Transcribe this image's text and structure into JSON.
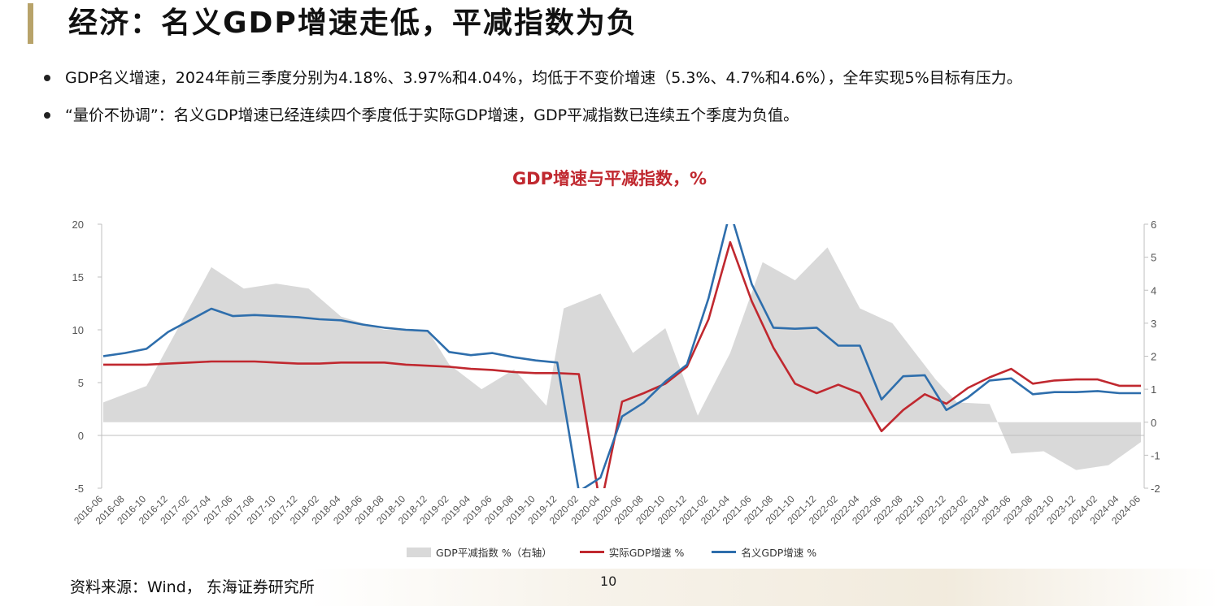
{
  "slide": {
    "title": "经济：名义GDP增速走低，平减指数为负",
    "bullets": [
      "GDP名义增速，2024年前三季度分别为4.18%、3.97%和4.04%，均低于不变价增速（5.3%、4.7%和4.6%），全年实现5%目标有压力。",
      "“量价不协调”：名义GDP增速已经连续四个季度低于实际GDP增速，GDP平减指数已连续五个季度为负值。"
    ],
    "source": "资料来源：Wind， 东海证券研究所",
    "page_number": "10"
  },
  "chart_data": {
    "type": "line",
    "title": "GDP增速与平减指数，%",
    "x": [
      "2016-06",
      "2016-08",
      "2016-10",
      "2016-12",
      "2017-02",
      "2017-04",
      "2017-06",
      "2017-08",
      "2017-10",
      "2017-12",
      "2018-02",
      "2018-04",
      "2018-06",
      "2018-08",
      "2018-10",
      "2018-12",
      "2019-02",
      "2019-04",
      "2019-06",
      "2019-08",
      "2019-10",
      "2019-12",
      "2020-02",
      "2020-04",
      "2020-06",
      "2020-08",
      "2020-10",
      "2020-12",
      "2021-02",
      "2021-04",
      "2021-06",
      "2021-08",
      "2021-10",
      "2021-12",
      "2022-02",
      "2022-04",
      "2022-06",
      "2022-08",
      "2022-10",
      "2022-12",
      "2023-02",
      "2023-04",
      "2023-06",
      "2023-08",
      "2023-10",
      "2023-12",
      "2024-02",
      "2024-04",
      "2024-06"
    ],
    "y_left": {
      "min": -5,
      "max": 20,
      "ticks": [
        -5,
        0,
        5,
        10,
        15,
        20
      ]
    },
    "y_right": {
      "min": -2,
      "max": 6,
      "ticks": [
        -2,
        -1,
        0,
        1,
        2,
        3,
        4,
        5,
        6
      ]
    },
    "series": [
      {
        "name": "GDP平减指数 %（右轴）",
        "kind": "area",
        "axis": "right",
        "color": "#d9d9d9",
        "points": [
          [
            0,
            0.6
          ],
          [
            2,
            1.1
          ],
          [
            5,
            4.7
          ],
          [
            6.5,
            4.05
          ],
          [
            8,
            4.2
          ],
          [
            9.5,
            4.05
          ],
          [
            11,
            3.2
          ],
          [
            13,
            2.8
          ],
          [
            15,
            2.8
          ],
          [
            16,
            1.75
          ],
          [
            17.5,
            1.0
          ],
          [
            19,
            1.6
          ],
          [
            20.5,
            0.5
          ],
          [
            21.3,
            3.45
          ],
          [
            23,
            3.9
          ],
          [
            24.5,
            2.1
          ],
          [
            26,
            2.85
          ],
          [
            27.5,
            0.2
          ],
          [
            29,
            2.1
          ],
          [
            30.5,
            4.85
          ],
          [
            32,
            4.3
          ],
          [
            33.5,
            5.3
          ],
          [
            35,
            3.45
          ],
          [
            36.5,
            3.0
          ],
          [
            38.5,
            1.3
          ],
          [
            39.5,
            0.6
          ],
          [
            41,
            0.55
          ],
          [
            42,
            -0.95
          ],
          [
            43.5,
            -0.88
          ],
          [
            45,
            -1.45
          ],
          [
            46.5,
            -1.3
          ],
          [
            48,
            -0.6
          ]
        ]
      },
      {
        "name": "实际GDP增速 %",
        "kind": "line",
        "axis": "left",
        "color": "#c0282f",
        "points": [
          [
            0,
            6.7
          ],
          [
            1,
            6.7
          ],
          [
            2,
            6.7
          ],
          [
            3,
            6.8
          ],
          [
            4,
            6.9
          ],
          [
            5,
            7.0
          ],
          [
            6,
            7.0
          ],
          [
            7,
            7.0
          ],
          [
            8,
            6.9
          ],
          [
            9,
            6.8
          ],
          [
            10,
            6.8
          ],
          [
            11,
            6.9
          ],
          [
            12,
            6.9
          ],
          [
            13,
            6.9
          ],
          [
            14,
            6.7
          ],
          [
            15,
            6.6
          ],
          [
            16,
            6.5
          ],
          [
            17,
            6.3
          ],
          [
            18,
            6.2
          ],
          [
            19,
            6.0
          ],
          [
            20,
            5.9
          ],
          [
            21,
            5.9
          ],
          [
            22,
            5.8
          ],
          [
            23,
            -6.8
          ],
          [
            24,
            3.2
          ],
          [
            25,
            4.0
          ],
          [
            26,
            4.9
          ],
          [
            27,
            6.5
          ],
          [
            28,
            11.0
          ],
          [
            29,
            18.3
          ],
          [
            30,
            12.7
          ],
          [
            31,
            8.3
          ],
          [
            32,
            4.9
          ],
          [
            33,
            4.0
          ],
          [
            34,
            4.8
          ],
          [
            35,
            4.0
          ],
          [
            36,
            0.4
          ],
          [
            37,
            2.4
          ],
          [
            38,
            3.9
          ],
          [
            39,
            3.0
          ],
          [
            40,
            4.5
          ],
          [
            41,
            5.5
          ],
          [
            42,
            6.3
          ],
          [
            43,
            4.9
          ],
          [
            44,
            5.2
          ],
          [
            45,
            5.3
          ],
          [
            46,
            5.3
          ],
          [
            47,
            4.7
          ],
          [
            48,
            4.7
          ]
        ]
      },
      {
        "name": "名义GDP增速 %",
        "kind": "line",
        "axis": "left",
        "color": "#2e6eac",
        "points": [
          [
            0,
            7.5
          ],
          [
            1,
            7.8
          ],
          [
            2,
            8.2
          ],
          [
            3,
            9.8
          ],
          [
            4,
            10.9
          ],
          [
            5,
            12.0
          ],
          [
            6,
            11.3
          ],
          [
            7,
            11.4
          ],
          [
            8,
            11.3
          ],
          [
            9,
            11.2
          ],
          [
            10,
            11.0
          ],
          [
            11,
            10.9
          ],
          [
            12,
            10.5
          ],
          [
            13,
            10.2
          ],
          [
            14,
            10.0
          ],
          [
            15,
            9.9
          ],
          [
            16,
            7.9
          ],
          [
            17,
            7.6
          ],
          [
            18,
            7.8
          ],
          [
            19,
            7.4
          ],
          [
            20,
            7.1
          ],
          [
            21,
            6.9
          ],
          [
            22,
            -5.3
          ],
          [
            23,
            -4.0
          ],
          [
            24,
            1.8
          ],
          [
            25,
            3.1
          ],
          [
            26,
            5.1
          ],
          [
            27,
            6.7
          ],
          [
            28,
            13.0
          ],
          [
            29,
            21.2
          ],
          [
            30,
            14.3
          ],
          [
            31,
            10.2
          ],
          [
            32,
            10.1
          ],
          [
            33,
            10.2
          ],
          [
            34,
            8.5
          ],
          [
            35,
            8.5
          ],
          [
            36,
            3.4
          ],
          [
            37,
            5.6
          ],
          [
            38,
            5.7
          ],
          [
            39,
            2.4
          ],
          [
            40,
            3.6
          ],
          [
            41,
            5.2
          ],
          [
            42,
            5.4
          ],
          [
            43,
            3.9
          ],
          [
            44,
            4.1
          ],
          [
            45,
            4.1
          ],
          [
            46,
            4.2
          ],
          [
            47,
            4.0
          ],
          [
            48,
            4.0
          ]
        ]
      }
    ],
    "legend": [
      "GDP平减指数 %（右轴）",
      "实际GDP增速 %",
      "名义GDP增速 %"
    ],
    "legend_position": "bottom",
    "grid": false
  }
}
